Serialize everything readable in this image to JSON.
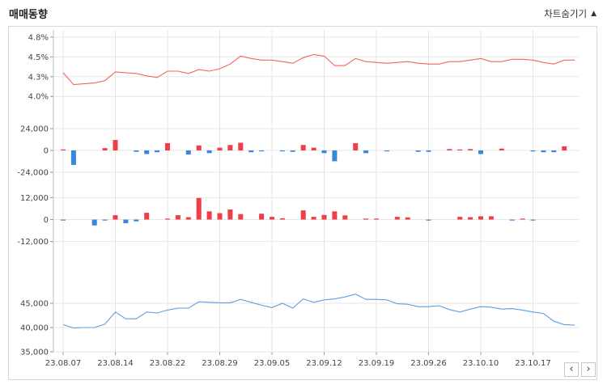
{
  "header": {
    "title": "매매동향",
    "toggle_label": "차트숨기기",
    "toggle_icon": "triangle-up-icon"
  },
  "nav": {
    "prev_label": "‹",
    "next_label": "›"
  },
  "colors": {
    "red_line": "#f0675a",
    "blue_line": "#5b9fdf",
    "pos_bar": "#ee3e47",
    "neg_bar": "#3a86db",
    "grid": "#e6e6e6"
  },
  "chart_data": {
    "type": "line",
    "x_tick_labels": [
      "23.08.07",
      "23.08.14",
      "23.08.22",
      "23.08.29",
      "23.09.05",
      "23.09.12",
      "23.09.19",
      "23.09.26",
      "23.10.10",
      "23.10.17"
    ],
    "x_tick_indices": [
      0,
      5,
      10,
      15,
      20,
      25,
      30,
      35,
      40,
      45
    ],
    "panels": [
      {
        "type": "line",
        "yticks": [
          "4.8%",
          "4.5%",
          "4.3%",
          "4.0%"
        ],
        "ytick_values": [
          4.8,
          4.55,
          4.3,
          4.05
        ],
        "ylim": [
          3.95,
          4.83
        ],
        "values": [
          4.35,
          4.2,
          4.21,
          4.22,
          4.25,
          4.36,
          4.35,
          4.34,
          4.31,
          4.29,
          4.37,
          4.37,
          4.34,
          4.39,
          4.37,
          4.4,
          4.46,
          4.56,
          4.53,
          4.51,
          4.51,
          4.49,
          4.47,
          4.54,
          4.58,
          4.56,
          4.44,
          4.44,
          4.53,
          4.49,
          4.48,
          4.47,
          4.48,
          4.49,
          4.47,
          4.46,
          4.46,
          4.49,
          4.49,
          4.51,
          4.53,
          4.49,
          4.49,
          4.52,
          4.52,
          4.51,
          4.48,
          4.46,
          4.51,
          4.51
        ]
      },
      {
        "type": "bar",
        "yticks": [
          "24,000",
          "0",
          "-24,000"
        ],
        "ytick_values": [
          24000,
          0,
          -24000
        ],
        "ylim": [
          -25000,
          25000
        ],
        "values": [
          800,
          -16000,
          0,
          0,
          2500,
          11500,
          0,
          -1500,
          -4000,
          -2000,
          8000,
          0,
          -4500,
          5500,
          -3000,
          3000,
          6000,
          8500,
          -2000,
          -1000,
          0,
          -500,
          -1500,
          6000,
          3000,
          -3000,
          -12000,
          0,
          8000,
          -3000,
          0,
          -500,
          0,
          0,
          -1500,
          -1500,
          0,
          1500,
          1000,
          1500,
          -4000,
          0,
          2000,
          0,
          0,
          -500,
          -2000,
          -2000,
          4500,
          0
        ]
      },
      {
        "type": "bar",
        "yticks": [
          "12,000",
          "0",
          "-12,000"
        ],
        "ytick_values": [
          12000,
          0,
          -12000
        ],
        "ylim": [
          -12600,
          12600
        ],
        "values": [
          -500,
          0,
          0,
          -3200,
          -400,
          2400,
          -2000,
          -1000,
          3700,
          0,
          300,
          2400,
          1300,
          11800,
          4500,
          3500,
          5500,
          3000,
          0,
          3200,
          1500,
          700,
          0,
          5000,
          1500,
          2500,
          4500,
          2300,
          0,
          300,
          300,
          0,
          1500,
          1200,
          0,
          -500,
          0,
          0,
          1500,
          1300,
          1800,
          1800,
          0,
          -500,
          300,
          -500,
          0,
          0,
          0,
          0
        ]
      },
      {
        "type": "line",
        "yticks": [
          "45,000",
          "40,000",
          "35,000"
        ],
        "ytick_values": [
          45000,
          40000,
          35000
        ],
        "ylim": [
          35000,
          50000
        ],
        "values": [
          40600,
          39900,
          40000,
          40000,
          40700,
          43200,
          41800,
          41800,
          43200,
          43000,
          43600,
          44000,
          44000,
          45300,
          45200,
          45100,
          45100,
          45800,
          45200,
          44600,
          44100,
          45000,
          44000,
          45900,
          45200,
          45700,
          45900,
          46300,
          46900,
          45800,
          45800,
          45700,
          44900,
          44800,
          44300,
          44300,
          44500,
          43700,
          43200,
          43800,
          44300,
          44200,
          43800,
          43900,
          43600,
          43200,
          42900,
          41300,
          40600,
          40500
        ]
      }
    ]
  }
}
